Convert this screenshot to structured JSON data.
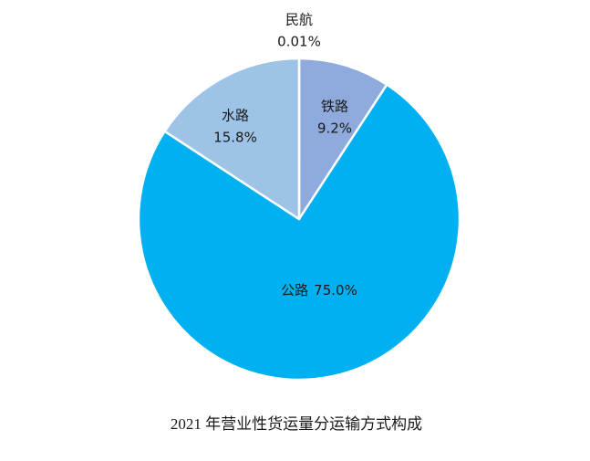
{
  "chart_data": {
    "type": "pie",
    "title": "2021 年营业性货运量分运输方式构成",
    "categories": [
      "民航",
      "铁路",
      "公路",
      "水路"
    ],
    "values": [
      0.01,
      9.2,
      75.0,
      15.8
    ],
    "value_labels": [
      "0.01%",
      "9.2%",
      "75.0%",
      "15.8%"
    ],
    "colors": [
      "#4472c4",
      "#8faadc",
      "#00b0f0",
      "#9dc3e6"
    ]
  }
}
